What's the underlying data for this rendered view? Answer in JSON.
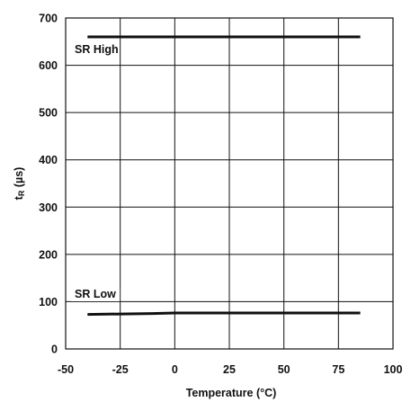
{
  "chart_data": {
    "type": "line",
    "xlabel": "Temperature (°C)",
    "ylabel_main": "t",
    "ylabel_sub": "R",
    "ylabel_unit": " (µs)",
    "xlim": [
      -50,
      100
    ],
    "ylim": [
      0,
      700
    ],
    "x_ticks": [
      -50,
      -25,
      0,
      25,
      50,
      75,
      100
    ],
    "y_ticks": [
      0,
      100,
      200,
      300,
      400,
      500,
      600,
      700
    ],
    "grid": true,
    "series": [
      {
        "name": "SR High",
        "x": [
          -40,
          85
        ],
        "y": [
          660,
          660
        ]
      },
      {
        "name": "SR Low",
        "x": [
          -40,
          -10,
          0,
          85
        ],
        "y": [
          73,
          75,
          76,
          76
        ]
      }
    ]
  }
}
